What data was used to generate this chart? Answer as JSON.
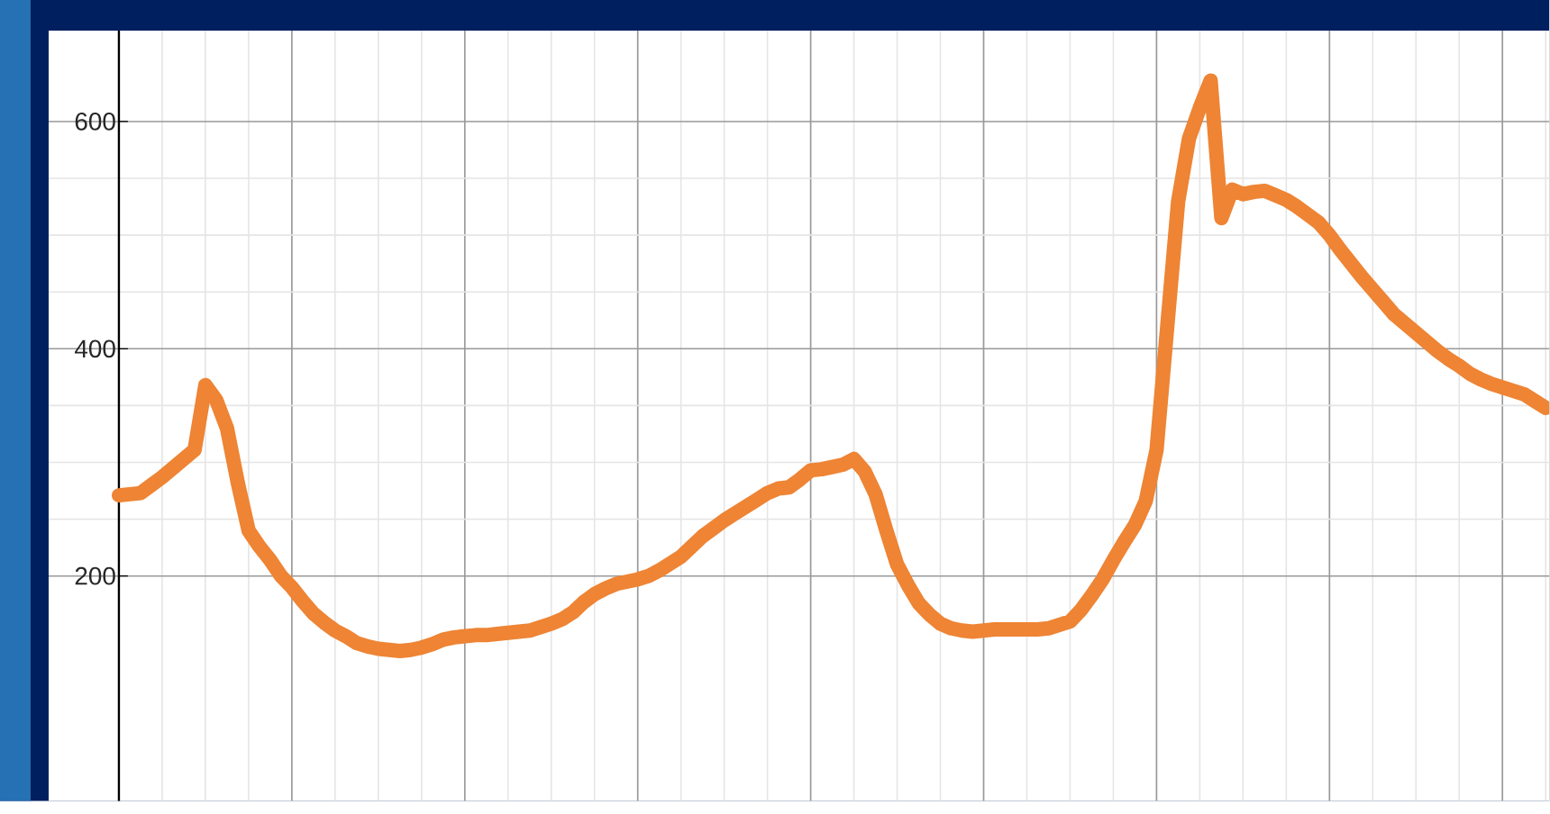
{
  "chart_data": {
    "type": "line",
    "categories": [
      null,
      null,
      null,
      null,
      null,
      null,
      null,
      null,
      null,
      null,
      null,
      null,
      null,
      null,
      null,
      null,
      null,
      null,
      null,
      null,
      null,
      null,
      null,
      null,
      null,
      null,
      null,
      null,
      null,
      null,
      null,
      null,
      null,
      null,
      null,
      null,
      null,
      null,
      null,
      null,
      null,
      null,
      null,
      null,
      null,
      null,
      null,
      null,
      null,
      null,
      null,
      null,
      null,
      null,
      null,
      null,
      null,
      null,
      null,
      null,
      null,
      null,
      null,
      null,
      null,
      null,
      null,
      null,
      null,
      null,
      null,
      null,
      null,
      null,
      null,
      null,
      null,
      null,
      null,
      null,
      null,
      null,
      null,
      null,
      null,
      null,
      null,
      null,
      null,
      null,
      null,
      null,
      null,
      null,
      null,
      null,
      null,
      null,
      null,
      null,
      null,
      null,
      null,
      null,
      null,
      null,
      null,
      null,
      null,
      null,
      null,
      null,
      null,
      null,
      null,
      null,
      null,
      null,
      null,
      null,
      null,
      null,
      null,
      null,
      null,
      null,
      null,
      null,
      null,
      null,
      null,
      null,
      null
    ],
    "series": [
      {
        "color": "#ee8434",
        "values": [
          271,
          272,
          273,
          280,
          287,
          295,
          303,
          311,
          368,
          355,
          330,
          282,
          240,
          226,
          214,
          200,
          190,
          178,
          167,
          159,
          152,
          147,
          141,
          138,
          136,
          135,
          134,
          135,
          137,
          140,
          144,
          146,
          147,
          148,
          148,
          149,
          150,
          151,
          152,
          155,
          158,
          162,
          168,
          177,
          184,
          189,
          193,
          195,
          197,
          200,
          205,
          211,
          217,
          226,
          235,
          242,
          249,
          255,
          261,
          267,
          273,
          277,
          278,
          285,
          293,
          294,
          296,
          298,
          303,
          292,
          272,
          240,
          210,
          192,
          176,
          166,
          158,
          154,
          152,
          151,
          152,
          153,
          153,
          153,
          153,
          153,
          154,
          157,
          160,
          170,
          183,
          197,
          214,
          230,
          245,
          266,
          311,
          421,
          530,
          585,
          612,
          636,
          515,
          540,
          536,
          538,
          539,
          535,
          531,
          525,
          518,
          511,
          500,
          487,
          475,
          463,
          452,
          441,
          430,
          422,
          414,
          406,
          398,
          391,
          385,
          378,
          373,
          369,
          366,
          363,
          360,
          354,
          348
        ]
      }
    ],
    "ylim": [
      2,
      680
    ],
    "yticks": [
      200,
      400,
      600
    ],
    "grid": true,
    "marker": "none",
    "line_style": "solid"
  }
}
